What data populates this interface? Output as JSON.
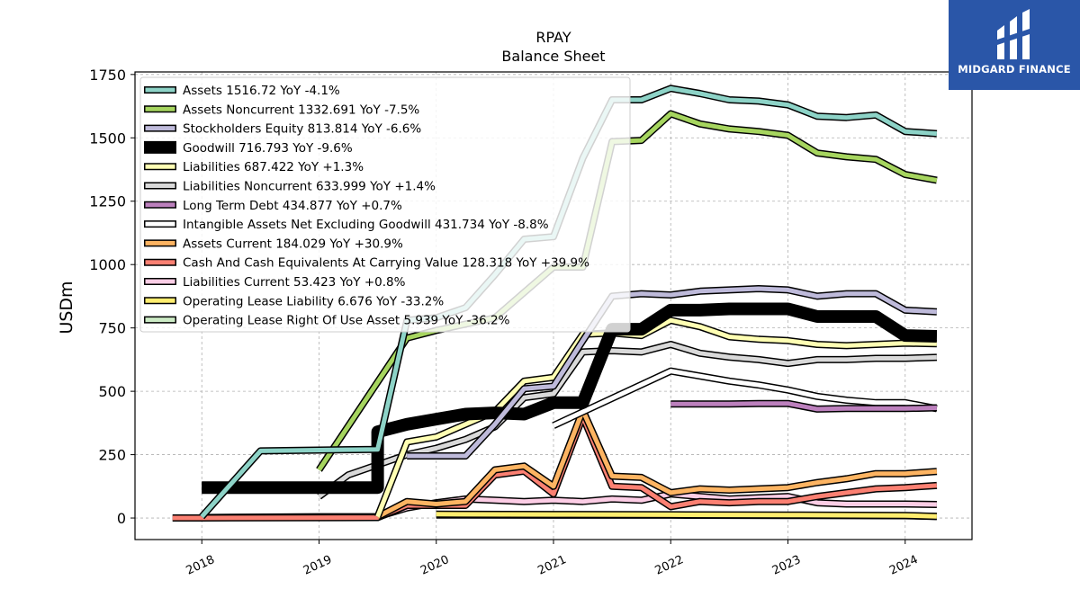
{
  "brand": {
    "name": "MIDGARD FINANCE",
    "color": "#2a56a8"
  },
  "chart_data": {
    "type": "line",
    "title": "RPAY",
    "subtitle": "Balance  Sheet",
    "ylabel": "USDm",
    "xlabel": "",
    "ylim": [
      -85,
      1760
    ],
    "xlim": [
      2017.43,
      2024.57
    ],
    "yticks": [
      0,
      250,
      500,
      750,
      1000,
      1250,
      1500,
      1750
    ],
    "xticks": [
      2018,
      2019,
      2020,
      2021,
      2022,
      2023,
      2024
    ],
    "grid": true,
    "legend_position": "top-left",
    "series": [
      {
        "name": "Assets",
        "legend": "Assets  1516.72 YoY -4.1%",
        "color": "#8dd3c7",
        "width": 5,
        "points": [
          [
            2018.0,
            5
          ],
          [
            2018.5,
            265
          ],
          [
            2019.0,
            268
          ],
          [
            2019.5,
            271
          ],
          [
            2019.75,
            780
          ],
          [
            2020.0,
            790
          ],
          [
            2020.25,
            830
          ],
          [
            2020.5,
            960
          ],
          [
            2020.75,
            1100
          ],
          [
            2021.0,
            1110
          ],
          [
            2021.25,
            1420
          ],
          [
            2021.5,
            1650
          ],
          [
            2021.75,
            1650
          ],
          [
            2022.0,
            1695
          ],
          [
            2022.25,
            1675
          ],
          [
            2022.5,
            1650
          ],
          [
            2022.75,
            1645
          ],
          [
            2023.0,
            1630
          ],
          [
            2023.25,
            1585
          ],
          [
            2023.5,
            1580
          ],
          [
            2023.75,
            1590
          ],
          [
            2024.0,
            1525
          ],
          [
            2024.27,
            1516.72
          ]
        ]
      },
      {
        "name": "Assets Noncurrent",
        "legend": "Assets Noncurrent  1332.691 YoY -7.5%",
        "color": "#a6d55f",
        "width": 5,
        "points": [
          [
            2019.0,
            190
          ],
          [
            2019.75,
            710
          ],
          [
            2020.0,
            740
          ],
          [
            2020.5,
            790
          ],
          [
            2020.75,
            890
          ],
          [
            2021.0,
            990
          ],
          [
            2021.25,
            990
          ],
          [
            2021.5,
            1485
          ],
          [
            2021.75,
            1490
          ],
          [
            2022.0,
            1595
          ],
          [
            2022.25,
            1555
          ],
          [
            2022.5,
            1535
          ],
          [
            2022.75,
            1525
          ],
          [
            2023.0,
            1510
          ],
          [
            2023.25,
            1440
          ],
          [
            2023.5,
            1425
          ],
          [
            2023.75,
            1415
          ],
          [
            2024.0,
            1355
          ],
          [
            2024.27,
            1332.691
          ]
        ]
      },
      {
        "name": "Stockholders Equity",
        "legend": "Stockholders Equity  813.814 YoY -6.6%",
        "color": "#bebada",
        "width": 5,
        "points": [
          [
            2019.75,
            245
          ],
          [
            2020.0,
            245
          ],
          [
            2020.25,
            245
          ],
          [
            2020.5,
            370
          ],
          [
            2020.75,
            510
          ],
          [
            2021.0,
            520
          ],
          [
            2021.25,
            700
          ],
          [
            2021.5,
            875
          ],
          [
            2021.75,
            885
          ],
          [
            2022.0,
            880
          ],
          [
            2022.25,
            895
          ],
          [
            2022.5,
            900
          ],
          [
            2022.75,
            905
          ],
          [
            2023.0,
            900
          ],
          [
            2023.25,
            875
          ],
          [
            2023.5,
            885
          ],
          [
            2023.75,
            885
          ],
          [
            2024.0,
            820
          ],
          [
            2024.27,
            813.814
          ]
        ]
      },
      {
        "name": "Goodwill",
        "legend": "Goodwill  716.793 YoY -9.6%",
        "color": "#000000",
        "width": 11,
        "points": [
          [
            2018.0,
            120
          ],
          [
            2019.5,
            120
          ],
          [
            2019.5,
            340
          ],
          [
            2019.75,
            370
          ],
          [
            2020.0,
            390
          ],
          [
            2020.25,
            410
          ],
          [
            2020.5,
            415
          ],
          [
            2020.75,
            410
          ],
          [
            2021.0,
            455
          ],
          [
            2021.25,
            455
          ],
          [
            2021.5,
            745
          ],
          [
            2021.75,
            745
          ],
          [
            2022.0,
            820
          ],
          [
            2022.25,
            820
          ],
          [
            2022.5,
            825
          ],
          [
            2022.75,
            825
          ],
          [
            2023.0,
            825
          ],
          [
            2023.25,
            795
          ],
          [
            2023.5,
            795
          ],
          [
            2023.75,
            795
          ],
          [
            2024.0,
            720
          ],
          [
            2024.27,
            716.793
          ]
        ]
      },
      {
        "name": "Liabilities",
        "legend": "Liabilities  687.422 YoY +1.3%",
        "color": "#ffffb3",
        "width": 5,
        "points": [
          [
            2019.5,
            5
          ],
          [
            2019.75,
            300
          ],
          [
            2020.0,
            320
          ],
          [
            2020.25,
            370
          ],
          [
            2020.5,
            420
          ],
          [
            2020.75,
            540
          ],
          [
            2021.0,
            555
          ],
          [
            2021.25,
            725
          ],
          [
            2021.5,
            730
          ],
          [
            2021.75,
            720
          ],
          [
            2022.0,
            780
          ],
          [
            2022.25,
            755
          ],
          [
            2022.5,
            715
          ],
          [
            2022.75,
            705
          ],
          [
            2023.0,
            700
          ],
          [
            2023.25,
            685
          ],
          [
            2023.5,
            680
          ],
          [
            2023.75,
            685
          ],
          [
            2024.0,
            690
          ],
          [
            2024.27,
            687.422
          ]
        ]
      },
      {
        "name": "Liabilities Noncurrent",
        "legend": "Liabilities Noncurrent  633.999 YoY +1.4%",
        "color": "#d9d9d9",
        "width": 5,
        "points": [
          [
            2019.0,
            85
          ],
          [
            2019.25,
            170
          ],
          [
            2019.5,
            210
          ],
          [
            2019.75,
            250
          ],
          [
            2020.0,
            275
          ],
          [
            2020.25,
            310
          ],
          [
            2020.5,
            360
          ],
          [
            2020.75,
            475
          ],
          [
            2021.0,
            490
          ],
          [
            2021.25,
            655
          ],
          [
            2021.5,
            660
          ],
          [
            2021.75,
            655
          ],
          [
            2022.0,
            685
          ],
          [
            2022.25,
            650
          ],
          [
            2022.5,
            635
          ],
          [
            2022.75,
            625
          ],
          [
            2023.0,
            610
          ],
          [
            2023.25,
            625
          ],
          [
            2023.5,
            625
          ],
          [
            2023.75,
            630
          ],
          [
            2024.0,
            630
          ],
          [
            2024.27,
            633.999
          ]
        ]
      },
      {
        "name": "Long Term Debt",
        "legend": "Long Term Debt  434.877 YoY +0.7%",
        "color": "#bc80bd",
        "width": 5,
        "points": [
          [
            2022.0,
            450
          ],
          [
            2022.25,
            450
          ],
          [
            2022.5,
            450
          ],
          [
            2022.75,
            452
          ],
          [
            2023.0,
            452
          ],
          [
            2023.25,
            430
          ],
          [
            2023.5,
            432
          ],
          [
            2023.75,
            432
          ],
          [
            2024.0,
            432
          ],
          [
            2024.27,
            434.877
          ]
        ]
      },
      {
        "name": "Intangible Assets Net Excluding Goodwill",
        "legend": "Intangible Assets Net Excluding Goodwill  431.734 YoY -8.8%",
        "color": "#ffffff",
        "width": 5,
        "points": [
          [
            2021.0,
            365
          ],
          [
            2022.0,
            580
          ],
          [
            2022.25,
            560
          ],
          [
            2022.5,
            540
          ],
          [
            2022.75,
            525
          ],
          [
            2023.0,
            505
          ],
          [
            2023.25,
            480
          ],
          [
            2023.5,
            465
          ],
          [
            2023.75,
            455
          ],
          [
            2024.0,
            455
          ],
          [
            2024.27,
            431.734
          ]
        ]
      },
      {
        "name": "Assets Current",
        "legend": "Assets Current  184.029 YoY +30.9%",
        "color": "#fdb462",
        "width": 5,
        "points": [
          [
            2019.5,
            5
          ],
          [
            2019.75,
            65
          ],
          [
            2020.0,
            55
          ],
          [
            2020.25,
            65
          ],
          [
            2020.5,
            190
          ],
          [
            2020.75,
            205
          ],
          [
            2021.0,
            125
          ],
          [
            2021.25,
            425
          ],
          [
            2021.5,
            165
          ],
          [
            2021.75,
            160
          ],
          [
            2022.0,
            100
          ],
          [
            2022.25,
            115
          ],
          [
            2022.5,
            110
          ],
          [
            2022.75,
            115
          ],
          [
            2023.0,
            120
          ],
          [
            2023.25,
            140
          ],
          [
            2023.5,
            155
          ],
          [
            2023.75,
            175
          ],
          [
            2024.0,
            175
          ],
          [
            2024.27,
            184.029
          ]
        ]
      },
      {
        "name": "Cash And Cash Equivalents At Carrying Value",
        "legend": "Cash And Cash Equivalents At Carrying Value  128.318 YoY +39.9%",
        "color": "#fb8072",
        "width": 5,
        "points": [
          [
            2017.75,
            0
          ],
          [
            2018.0,
            0
          ],
          [
            2019.5,
            2
          ],
          [
            2019.75,
            50
          ],
          [
            2020.0,
            50
          ],
          [
            2020.25,
            50
          ],
          [
            2020.5,
            170
          ],
          [
            2020.75,
            185
          ],
          [
            2021.0,
            95
          ],
          [
            2021.25,
            400
          ],
          [
            2021.5,
            125
          ],
          [
            2021.75,
            120
          ],
          [
            2022.0,
            45
          ],
          [
            2022.25,
            65
          ],
          [
            2022.5,
            60
          ],
          [
            2022.75,
            65
          ],
          [
            2023.0,
            65
          ],
          [
            2023.25,
            85
          ],
          [
            2023.5,
            100
          ],
          [
            2023.75,
            115
          ],
          [
            2024.0,
            120
          ],
          [
            2024.27,
            128.318
          ]
        ]
      },
      {
        "name": "Liabilities Current",
        "legend": "Liabilities Current  53.423 YoY +0.8%",
        "color": "#fccde5",
        "width": 5,
        "points": [
          [
            2018.0,
            2
          ],
          [
            2019.0,
            5
          ],
          [
            2019.5,
            5
          ],
          [
            2019.75,
            40
          ],
          [
            2020.0,
            60
          ],
          [
            2020.25,
            75
          ],
          [
            2020.5,
            70
          ],
          [
            2020.75,
            65
          ],
          [
            2021.0,
            70
          ],
          [
            2021.25,
            65
          ],
          [
            2021.5,
            75
          ],
          [
            2021.75,
            70
          ],
          [
            2022.0,
            95
          ],
          [
            2022.25,
            85
          ],
          [
            2022.5,
            75
          ],
          [
            2022.75,
            80
          ],
          [
            2023.0,
            85
          ],
          [
            2023.25,
            60
          ],
          [
            2023.5,
            55
          ],
          [
            2023.75,
            55
          ],
          [
            2024.0,
            55
          ],
          [
            2024.27,
            53.423
          ]
        ]
      },
      {
        "name": "Operating Lease Liability",
        "legend": "Operating Lease Liability  6.676 YoY -33.2%",
        "color": "#ffed6f",
        "width": 5,
        "points": [
          [
            2020.0,
            15
          ],
          [
            2021.0,
            14
          ],
          [
            2022.0,
            13
          ],
          [
            2023.0,
            12
          ],
          [
            2024.0,
            10
          ],
          [
            2024.27,
            6.676
          ]
        ]
      },
      {
        "name": "Operating Lease Right Of Use Asset",
        "legend": "Operating Lease Right Of Use Asset  5.939 YoY -36.2%",
        "color": "#ccebc5",
        "width": 5,
        "points": [
          [
            2020.0,
            12
          ],
          [
            2021.0,
            11
          ],
          [
            2022.0,
            11
          ],
          [
            2023.0,
            10
          ],
          [
            2024.0,
            9
          ],
          [
            2024.27,
            5.939
          ]
        ]
      }
    ]
  }
}
